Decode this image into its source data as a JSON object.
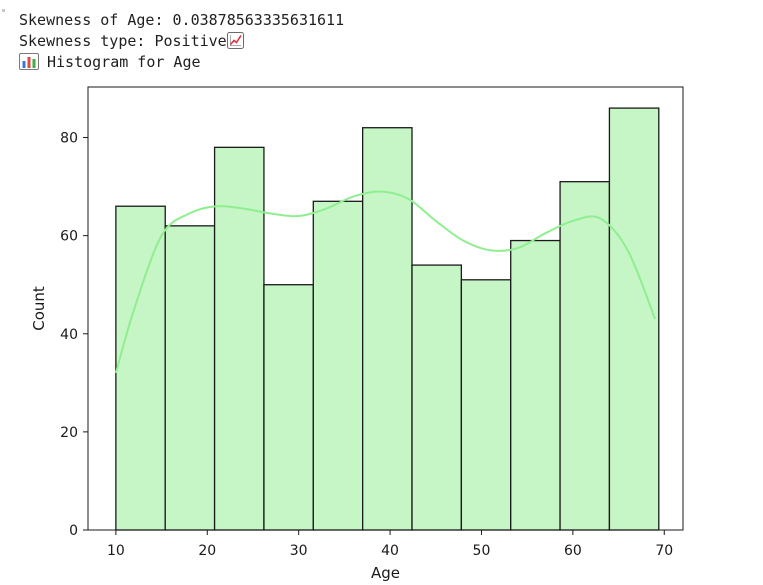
{
  "output": {
    "skew_line": "Skewness of Age: 0.03878563335631611",
    "type_line": "Skewness type: Positive",
    "type_icon": "chart-increasing-icon",
    "hist_icon": "bar-chart-icon",
    "hist_line": "Histogram for Age"
  },
  "chart_data": {
    "type": "bar",
    "subtype": "histogram-with-kde",
    "xlabel": "Age",
    "ylabel": "Count",
    "xlim": [
      6.95,
      72.05
    ],
    "ylim": [
      0,
      90.3
    ],
    "xticks": [
      10,
      20,
      30,
      40,
      50,
      60,
      70
    ],
    "yticks": [
      0,
      20,
      40,
      60,
      80
    ],
    "bins": [
      {
        "x0": 10.0,
        "x1": 15.4,
        "count": 66
      },
      {
        "x0": 15.4,
        "x1": 20.8,
        "count": 62
      },
      {
        "x0": 20.8,
        "x1": 26.2,
        "count": 78
      },
      {
        "x0": 26.2,
        "x1": 31.6,
        "count": 50
      },
      {
        "x0": 31.6,
        "x1": 37.0,
        "count": 67
      },
      {
        "x0": 37.0,
        "x1": 42.4,
        "count": 82
      },
      {
        "x0": 42.4,
        "x1": 47.8,
        "count": 54
      },
      {
        "x0": 47.8,
        "x1": 53.2,
        "count": 51
      },
      {
        "x0": 53.2,
        "x1": 58.6,
        "count": 59
      },
      {
        "x0": 58.6,
        "x1": 64.0,
        "count": 71
      },
      {
        "x0": 64.0,
        "x1": 69.4,
        "count": 86
      }
    ],
    "kde": {
      "x": [
        10,
        12,
        15,
        18,
        21,
        24,
        27,
        30,
        33,
        36,
        39,
        42,
        45,
        48,
        51,
        54,
        57,
        60,
        63,
        66,
        69
      ],
      "y": [
        32,
        45,
        60,
        64.5,
        66,
        65.5,
        64.5,
        64,
        65.5,
        68,
        69,
        67.5,
        63,
        59,
        57,
        57.5,
        60.5,
        63,
        63.5,
        57,
        43
      ]
    },
    "bar_fill": "#c6f5c6",
    "bar_edge": "#1a1a1a",
    "kde_color": "#90ee90",
    "grid": false
  }
}
